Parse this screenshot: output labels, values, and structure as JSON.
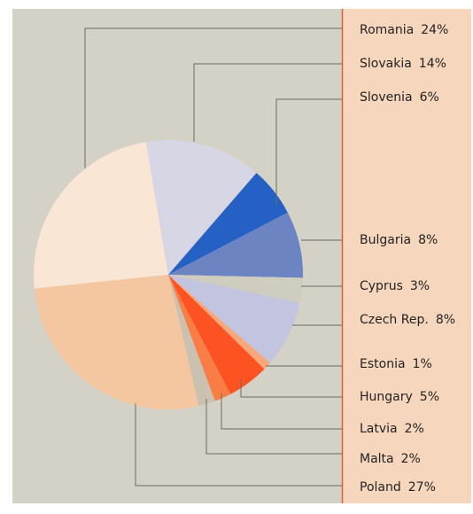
{
  "chart_data": {
    "type": "pie",
    "categories": [
      "Romania",
      "Slovakia",
      "Slovenia",
      "Bulgaria",
      "Cyprus",
      "Czech Rep.",
      "Estonia",
      "Hungary",
      "Latvia",
      "Malta",
      "Poland"
    ],
    "values": [
      24,
      14,
      6,
      8,
      3,
      8,
      1,
      5,
      2,
      2,
      27
    ],
    "value_labels": [
      "24%",
      "14%",
      "6%",
      "8%",
      "3%",
      "8%",
      "1%",
      "5%",
      "2%",
      "2%",
      "27%"
    ],
    "colors": [
      "#f9e6d5",
      "#d7d6e4",
      "#2560c4",
      "#6c84c2",
      "#cfccc0",
      "#c3c5e0",
      "#f9a77a",
      "#fd5222",
      "#fb7d46",
      "#cbc1b0",
      "#f4c7a0"
    ]
  }
}
